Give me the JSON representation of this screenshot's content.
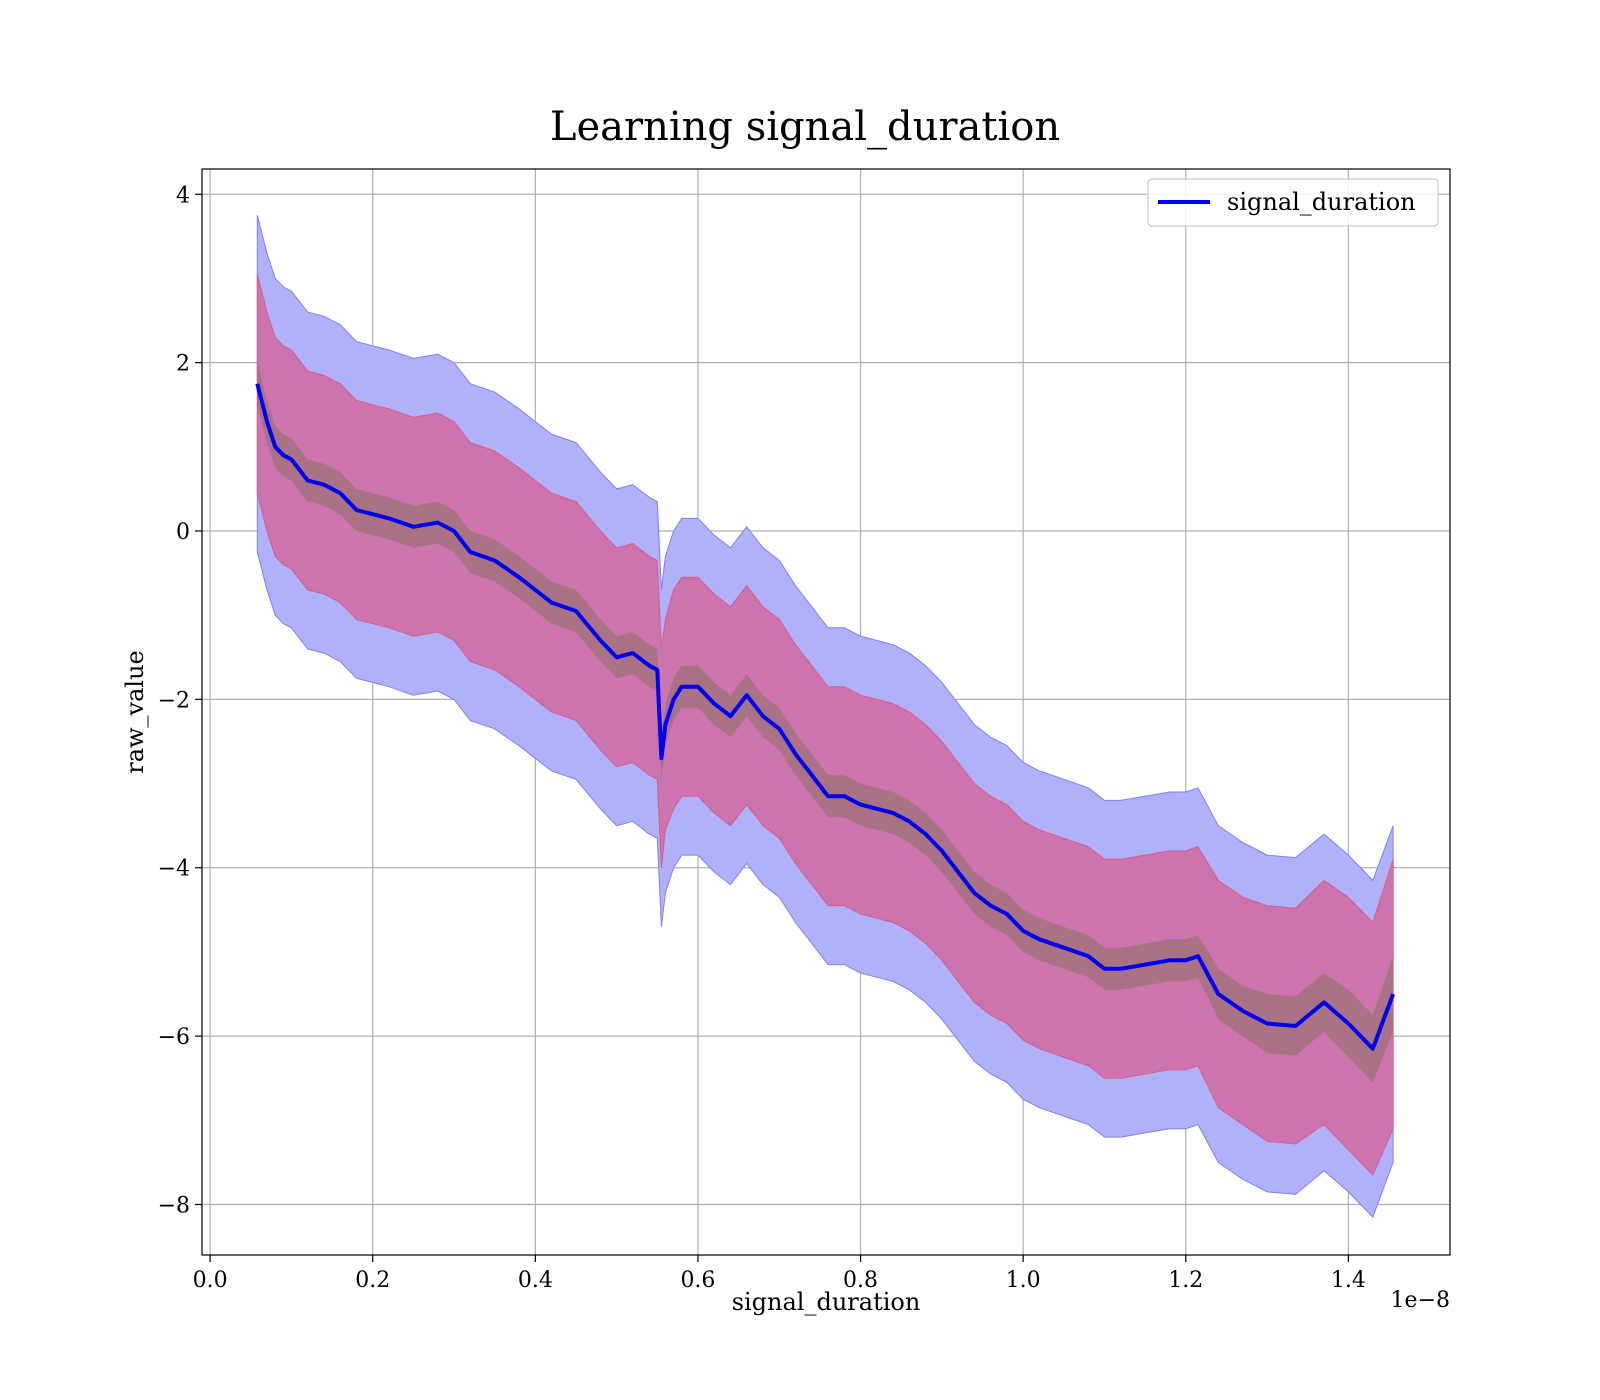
{
  "chart_data": {
    "type": "line",
    "title": "Learning signal_duration",
    "xlabel": "signal_duration",
    "ylabel": "raw_value",
    "x_offset_text": "1e−8",
    "xlim": [
      -0.01,
      1.525
    ],
    "ylim": [
      -8.6,
      4.3
    ],
    "x_ticks": [
      0.0,
      0.2,
      0.4,
      0.6,
      0.8,
      1.0,
      1.2,
      1.4
    ],
    "x_tick_labels": [
      "0.0",
      "0.2",
      "0.4",
      "0.6",
      "0.8",
      "1.0",
      "1.2",
      "1.4"
    ],
    "y_ticks": [
      4,
      2,
      0,
      -2,
      -4,
      -6,
      -8
    ],
    "y_tick_labels": [
      "4",
      "2",
      "0",
      "−2",
      "−4",
      "−6",
      "−8"
    ],
    "grid": true,
    "legend": {
      "placement": "top-right",
      "entries": [
        "signal_duration"
      ]
    },
    "colors": {
      "mean_line": "#0000ee",
      "band_outer": "#b0b0fb",
      "band_middle": "#cd73ad",
      "band_inner": "#a97385"
    },
    "series": [
      {
        "name": "signal_duration",
        "x": [
          0.058,
          0.07,
          0.08,
          0.09,
          0.1,
          0.12,
          0.14,
          0.16,
          0.18,
          0.2,
          0.22,
          0.25,
          0.28,
          0.3,
          0.32,
          0.35,
          0.38,
          0.4,
          0.42,
          0.45,
          0.48,
          0.5,
          0.52,
          0.54,
          0.55,
          0.555,
          0.56,
          0.57,
          0.58,
          0.6,
          0.62,
          0.64,
          0.66,
          0.68,
          0.7,
          0.72,
          0.74,
          0.76,
          0.78,
          0.8,
          0.82,
          0.84,
          0.86,
          0.88,
          0.9,
          0.92,
          0.94,
          0.96,
          0.98,
          1.0,
          1.02,
          1.05,
          1.08,
          1.1,
          1.12,
          1.15,
          1.18,
          1.2,
          1.215,
          1.24,
          1.27,
          1.3,
          1.335,
          1.37,
          1.4,
          1.43,
          1.455
        ],
        "mean": [
          1.75,
          1.3,
          1.0,
          0.9,
          0.85,
          0.6,
          0.55,
          0.45,
          0.25,
          0.2,
          0.15,
          0.05,
          0.1,
          0.0,
          -0.25,
          -0.35,
          -0.55,
          -0.7,
          -0.85,
          -0.95,
          -1.3,
          -1.5,
          -1.45,
          -1.6,
          -1.65,
          -2.7,
          -2.3,
          -2.0,
          -1.85,
          -1.85,
          -2.05,
          -2.2,
          -1.95,
          -2.2,
          -2.35,
          -2.65,
          -2.9,
          -3.15,
          -3.15,
          -3.25,
          -3.3,
          -3.35,
          -3.45,
          -3.6,
          -3.8,
          -4.05,
          -4.3,
          -4.45,
          -4.55,
          -4.75,
          -4.85,
          -4.95,
          -5.05,
          -5.2,
          -5.2,
          -5.15,
          -5.1,
          -5.1,
          -5.05,
          -5.5,
          -5.7,
          -5.85,
          -5.88,
          -5.6,
          -5.85,
          -6.15,
          -5.5
        ],
        "inner_band_halfwidth": [
          0.25,
          0.25,
          0.25,
          0.25,
          0.25,
          0.25,
          0.25,
          0.25,
          0.25,
          0.25,
          0.25,
          0.25,
          0.25,
          0.25,
          0.25,
          0.25,
          0.25,
          0.25,
          0.25,
          0.25,
          0.25,
          0.25,
          0.25,
          0.25,
          0.25,
          0.25,
          0.25,
          0.25,
          0.25,
          0.25,
          0.25,
          0.25,
          0.25,
          0.25,
          0.25,
          0.25,
          0.25,
          0.25,
          0.25,
          0.25,
          0.25,
          0.25,
          0.25,
          0.25,
          0.25,
          0.25,
          0.25,
          0.25,
          0.25,
          0.25,
          0.25,
          0.25,
          0.25,
          0.25,
          0.25,
          0.25,
          0.25,
          0.25,
          0.25,
          0.3,
          0.3,
          0.35,
          0.35,
          0.35,
          0.4,
          0.4,
          0.45
        ],
        "middle_band_halfwidth": [
          1.3,
          1.3,
          1.3,
          1.3,
          1.3,
          1.3,
          1.3,
          1.3,
          1.3,
          1.3,
          1.3,
          1.3,
          1.3,
          1.3,
          1.3,
          1.3,
          1.3,
          1.3,
          1.3,
          1.3,
          1.3,
          1.3,
          1.3,
          1.3,
          1.3,
          1.3,
          1.25,
          1.3,
          1.3,
          1.3,
          1.3,
          1.3,
          1.3,
          1.3,
          1.3,
          1.3,
          1.3,
          1.3,
          1.3,
          1.3,
          1.3,
          1.3,
          1.3,
          1.3,
          1.3,
          1.3,
          1.3,
          1.3,
          1.3,
          1.3,
          1.3,
          1.3,
          1.3,
          1.3,
          1.3,
          1.3,
          1.3,
          1.3,
          1.3,
          1.35,
          1.35,
          1.4,
          1.4,
          1.45,
          1.5,
          1.5,
          1.6
        ],
        "outer_band_halfwidth": [
          2.0,
          2.0,
          2.0,
          2.0,
          2.0,
          2.0,
          2.0,
          2.0,
          2.0,
          2.0,
          2.0,
          2.0,
          2.0,
          2.0,
          2.0,
          2.0,
          2.0,
          2.0,
          2.0,
          2.0,
          2.0,
          2.0,
          2.0,
          2.0,
          2.0,
          2.0,
          2.0,
          2.0,
          2.0,
          2.0,
          2.0,
          2.0,
          2.0,
          2.0,
          2.0,
          2.0,
          2.0,
          2.0,
          2.0,
          2.0,
          2.0,
          2.0,
          2.0,
          2.0,
          2.0,
          2.0,
          2.0,
          2.0,
          2.0,
          2.0,
          2.0,
          2.0,
          2.0,
          2.0,
          2.0,
          2.0,
          2.0,
          2.0,
          2.0,
          2.0,
          2.0,
          2.0,
          2.0,
          2.0,
          2.0,
          2.0,
          2.0
        ]
      }
    ]
  }
}
